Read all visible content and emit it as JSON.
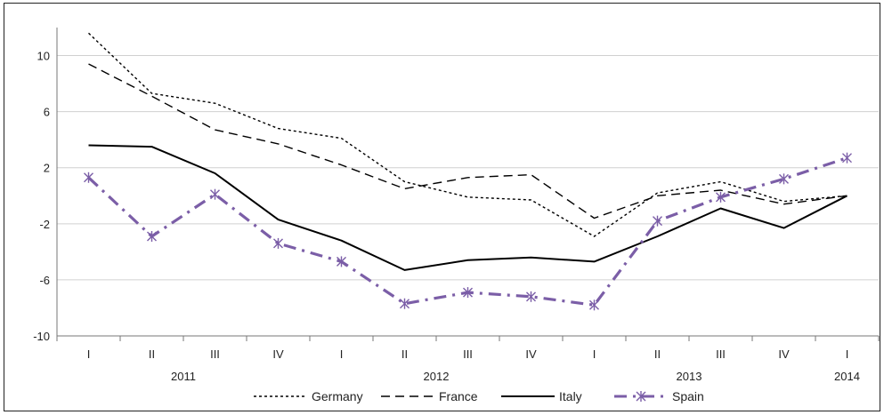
{
  "chart_data": {
    "type": "line",
    "quarters": [
      "I",
      "II",
      "III",
      "IV",
      "I",
      "II",
      "III",
      "IV",
      "I",
      "II",
      "III",
      "IV",
      "I"
    ],
    "years": [
      {
        "label": "2011",
        "start": 0,
        "end": 3
      },
      {
        "label": "2012",
        "start": 4,
        "end": 7
      },
      {
        "label": "2013",
        "start": 8,
        "end": 11
      },
      {
        "label": "2014",
        "start": 12,
        "end": 12
      }
    ],
    "y_ticks": [
      "10",
      "6",
      "2",
      "-2",
      "-6",
      "-10"
    ],
    "ylim": [
      -10,
      12
    ],
    "grid": true,
    "legend_position": "bottom",
    "series": [
      {
        "name": "Germany",
        "style": "dotted",
        "color": "#000000",
        "values": [
          11.6,
          7.3,
          6.6,
          4.8,
          4.1,
          1.0,
          -0.1,
          -0.3,
          -2.9,
          0.2,
          1.0,
          -0.4,
          0.0
        ]
      },
      {
        "name": "France",
        "style": "dashed",
        "color": "#000000",
        "values": [
          9.4,
          7.1,
          4.7,
          3.7,
          2.2,
          0.5,
          1.3,
          1.5,
          -1.6,
          0.0,
          0.4,
          -0.6,
          0.0
        ]
      },
      {
        "name": "Italy",
        "style": "solid",
        "color": "#000000",
        "values": [
          3.6,
          3.5,
          1.6,
          -1.7,
          -3.2,
          -5.3,
          -4.6,
          -4.4,
          -4.7,
          -2.9,
          -0.9,
          -2.3,
          0.0
        ]
      },
      {
        "name": "Spain",
        "style": "dashdot-marker",
        "color": "#7b5ea7",
        "values": [
          1.3,
          -2.9,
          0.1,
          -3.4,
          -4.7,
          -7.7,
          -6.9,
          -7.2,
          -7.8,
          -1.8,
          -0.1,
          1.2,
          2.7
        ]
      }
    ]
  }
}
